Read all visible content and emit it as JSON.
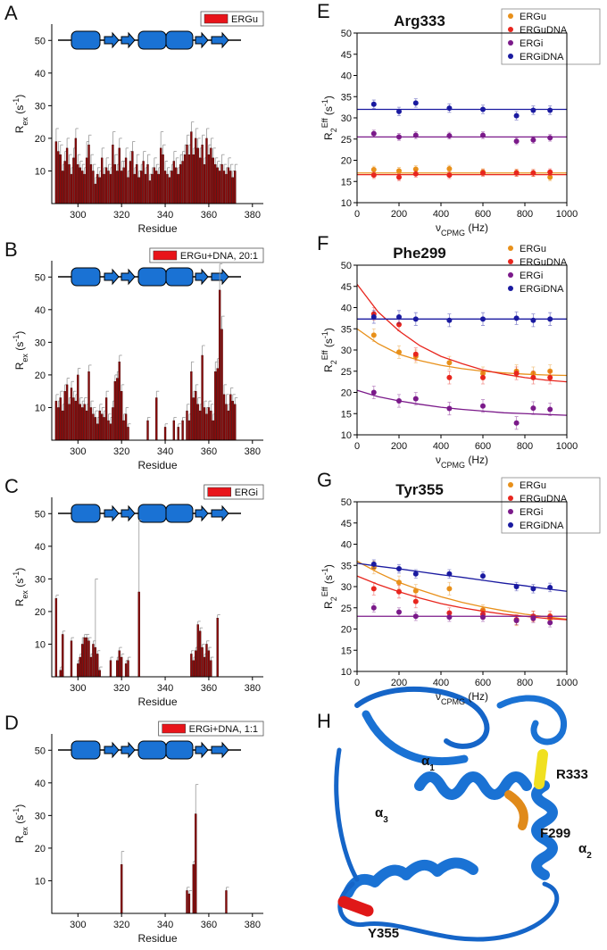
{
  "chart_data": [
    {
      "type": "bar",
      "panel": "A",
      "legend": "ERGu",
      "color": "#8b0a0a",
      "legend_color": "#e8141a",
      "ylabel": [
        "R",
        "ex",
        " (s",
        "-1",
        ")"
      ],
      "xlabel": "Residue",
      "xlim": [
        288,
        385
      ],
      "ylim": [
        0,
        55
      ],
      "xticks": [
        300,
        320,
        340,
        360,
        380
      ],
      "yticks": [
        10,
        20,
        30,
        40,
        50
      ],
      "x": [
        290,
        291,
        292,
        293,
        294,
        295,
        296,
        297,
        298,
        299,
        300,
        301,
        302,
        303,
        304,
        305,
        306,
        307,
        308,
        309,
        310,
        311,
        312,
        313,
        314,
        315,
        316,
        317,
        318,
        319,
        320,
        321,
        322,
        323,
        324,
        325,
        326,
        327,
        328,
        329,
        330,
        331,
        332,
        333,
        334,
        335,
        336,
        337,
        338,
        339,
        340,
        341,
        342,
        343,
        344,
        345,
        346,
        347,
        348,
        349,
        350,
        351,
        352,
        353,
        354,
        355,
        356,
        357,
        358,
        359,
        360,
        361,
        362,
        363,
        364,
        365,
        366,
        367,
        368,
        369,
        370,
        371,
        372
      ],
      "values": [
        19,
        16,
        15,
        10,
        13,
        17,
        12,
        9,
        14,
        20,
        12,
        11,
        10,
        9,
        14,
        18,
        12,
        10,
        6,
        9,
        8,
        14,
        9,
        11,
        10,
        9,
        18,
        12,
        10,
        17,
        10,
        11,
        14,
        8,
        13,
        16,
        9,
        12,
        8,
        10,
        13,
        9,
        12,
        7,
        9,
        11,
        10,
        9,
        17,
        15,
        10,
        9,
        8,
        10,
        13,
        11,
        9,
        12,
        13,
        15,
        18,
        15,
        22,
        15,
        20,
        17,
        14,
        18,
        12,
        20,
        15,
        17,
        14,
        12,
        11,
        10,
        12,
        10,
        9,
        11,
        10,
        8,
        10
      ],
      "errors": [
        4,
        3,
        3,
        2,
        3,
        3,
        3,
        2,
        3,
        3,
        3,
        2,
        2,
        2,
        5,
        3,
        3,
        2,
        2,
        2,
        2,
        3,
        2,
        3,
        2,
        2,
        4,
        3,
        2,
        3,
        3,
        2,
        3,
        2,
        3,
        3,
        2,
        3,
        2,
        2,
        3,
        2,
        3,
        2,
        2,
        3,
        2,
        2,
        5,
        3,
        3,
        2,
        2,
        2,
        3,
        3,
        2,
        3,
        3,
        3,
        3,
        3,
        3,
        2,
        3,
        3,
        3,
        3,
        2,
        3,
        3,
        3,
        3,
        2,
        2,
        2,
        3,
        2,
        2,
        3,
        2,
        2,
        2
      ]
    },
    {
      "type": "bar",
      "panel": "B",
      "legend": "ERGu+DNA, 20:1",
      "color": "#8b0a0a",
      "legend_color": "#e8141a",
      "ylabel": [
        "R",
        "ex",
        " (s",
        "-1",
        ")"
      ],
      "xlabel": "Residue",
      "xlim": [
        288,
        385
      ],
      "ylim": [
        0,
        55
      ],
      "xticks": [
        300,
        320,
        340,
        360,
        380
      ],
      "yticks": [
        10,
        20,
        30,
        40,
        50
      ],
      "x": [
        290,
        291,
        292,
        293,
        294,
        295,
        296,
        297,
        298,
        299,
        300,
        301,
        302,
        303,
        304,
        305,
        306,
        307,
        308,
        309,
        310,
        311,
        312,
        313,
        314,
        315,
        316,
        317,
        318,
        319,
        320,
        321,
        322,
        323,
        332,
        336,
        340,
        344,
        346,
        348,
        350,
        351,
        352,
        353,
        354,
        355,
        356,
        357,
        358,
        359,
        360,
        361,
        362,
        363,
        364,
        365,
        366,
        367,
        368,
        369,
        370,
        371,
        372
      ],
      "values": [
        12,
        10,
        13,
        9,
        15,
        17,
        11,
        16,
        13,
        12,
        20,
        11,
        10,
        11,
        9,
        21,
        10,
        8,
        7,
        5,
        9,
        8,
        7,
        13,
        6,
        5,
        10,
        18,
        19,
        24,
        15,
        6,
        8,
        4,
        6,
        13,
        4,
        6,
        4,
        6,
        9,
        6,
        21,
        13,
        15,
        11,
        9,
        26,
        10,
        8,
        10,
        9,
        6,
        21,
        22,
        46,
        34,
        14,
        11,
        9,
        14,
        12,
        11
      ],
      "errors": [
        2,
        2,
        2,
        2,
        2,
        2,
        2,
        2,
        2,
        2,
        2,
        2,
        2,
        2,
        2,
        2,
        2,
        2,
        2,
        2,
        2,
        2,
        2,
        2,
        2,
        2,
        2,
        2,
        2,
        2,
        2,
        2,
        2,
        1,
        1,
        2,
        1,
        1,
        1,
        1,
        2,
        2,
        3,
        2,
        2,
        2,
        2,
        3,
        2,
        2,
        2,
        2,
        2,
        3,
        3,
        8,
        4,
        3,
        3,
        2,
        2,
        2,
        2
      ]
    },
    {
      "type": "bar",
      "panel": "C",
      "legend": "ERGi",
      "color": "#8b0a0a",
      "legend_color": "#e8141a",
      "ylabel": [
        "R",
        "ex",
        " (s",
        "-1",
        ")"
      ],
      "xlabel": "Residue",
      "xlim": [
        288,
        385
      ],
      "ylim": [
        0,
        55
      ],
      "xticks": [
        300,
        320,
        340,
        360,
        380
      ],
      "yticks": [
        10,
        20,
        30,
        40,
        50
      ],
      "x": [
        290,
        292,
        293,
        297,
        300,
        301,
        302,
        303,
        304,
        305,
        306,
        307,
        308,
        309,
        310,
        315,
        318,
        319,
        320,
        322,
        323,
        328,
        352,
        353,
        354,
        355,
        356,
        357,
        358,
        359,
        360,
        361,
        364
      ],
      "values": [
        24,
        2,
        13,
        11,
        4,
        6,
        10,
        12,
        12,
        11,
        6,
        10,
        9,
        7,
        2,
        5,
        5,
        8,
        6,
        4,
        5,
        26,
        7,
        5,
        8,
        16,
        14,
        9,
        6,
        10,
        8,
        5,
        18
      ],
      "errors": [
        1,
        1,
        1,
        1,
        1,
        1,
        2,
        1,
        1,
        1,
        1,
        1,
        21,
        1,
        1,
        1,
        1,
        1,
        1,
        1,
        1,
        22,
        1,
        1,
        1,
        1,
        1,
        1,
        1,
        1,
        1,
        1,
        1
      ]
    },
    {
      "type": "bar",
      "panel": "D",
      "legend": "ERGi+DNA, 1:1",
      "color": "#8b0a0a",
      "legend_color": "#e8141a",
      "ylabel": [
        "R",
        "ex",
        " (s",
        "-1",
        ")"
      ],
      "xlabel": "Residue",
      "xlim": [
        288,
        385
      ],
      "ylim": [
        0,
        55
      ],
      "xticks": [
        300,
        320,
        340,
        360,
        380
      ],
      "yticks": [
        10,
        20,
        30,
        40,
        50
      ],
      "x": [
        320,
        350,
        351,
        353,
        354,
        368
      ],
      "values": [
        15,
        7,
        6,
        15,
        30.5,
        7
      ],
      "errors": [
        4,
        1,
        1,
        1,
        9,
        1
      ]
    },
    {
      "type": "scatter",
      "panel": "E",
      "title": "Arg333",
      "legend_box": true,
      "ylabel": [
        "R",
        "2",
        "Eff",
        " (s",
        "-1",
        ")"
      ],
      "xlabel": [
        "ν",
        "CPMG",
        " (Hz)"
      ],
      "xlim": [
        0,
        1000
      ],
      "ylim": [
        10,
        50
      ],
      "xticks": [
        0,
        200,
        400,
        600,
        800,
        1000
      ],
      "yticks": [
        10,
        15,
        20,
        25,
        30,
        35,
        40,
        45,
        50
      ],
      "x": [
        80,
        200,
        280,
        440,
        600,
        760,
        840,
        920
      ],
      "fit_x": [
        0,
        100,
        200,
        300,
        400,
        500,
        600,
        700,
        800,
        900,
        1000
      ],
      "series": [
        {
          "name": "ERGu",
          "color": "#e8901a",
          "values": [
            17.8,
            17.5,
            17.9,
            18,
            17.2,
            17.1,
            17,
            16
          ],
          "errors": [
            0.8,
            0.8,
            0.8,
            0.8,
            0.8,
            0.8,
            0.8,
            0.8
          ],
          "fit": [
            17,
            17,
            17,
            17,
            17,
            17,
            17,
            17,
            17,
            17,
            17
          ]
        },
        {
          "name": "ERGuDNA",
          "color": "#e8261e",
          "values": [
            16.5,
            16,
            16.8,
            16.5,
            17,
            17,
            17,
            17.2
          ],
          "errors": [
            0.8,
            0.8,
            0.8,
            0.8,
            0.8,
            0.8,
            0.8,
            0.8
          ],
          "fit": [
            16.6,
            16.6,
            16.6,
            16.6,
            16.6,
            16.6,
            16.6,
            16.6,
            16.6,
            16.6,
            16.6
          ]
        },
        {
          "name": "ERGi",
          "color": "#7b1a8a",
          "values": [
            26.3,
            25.5,
            25.9,
            25.8,
            25.9,
            24.5,
            24.8,
            25.3
          ],
          "errors": [
            0.8,
            0.8,
            0.8,
            0.8,
            0.8,
            0.8,
            0.8,
            0.8
          ],
          "fit": [
            25.5,
            25.5,
            25.5,
            25.5,
            25.5,
            25.5,
            25.5,
            25.5,
            25.5,
            25.5,
            25.5
          ]
        },
        {
          "name": "ERGiDNA",
          "color": "#1a1aa0",
          "values": [
            33.2,
            31.5,
            33.5,
            32.3,
            32,
            30.5,
            31.8,
            31.8
          ],
          "errors": [
            1,
            1,
            1,
            1,
            1,
            1,
            1,
            1
          ],
          "fit": [
            32,
            32,
            32,
            32,
            32,
            32,
            32,
            32,
            32,
            32,
            32
          ]
        }
      ]
    },
    {
      "type": "scatter",
      "panel": "F",
      "title": "Phe299",
      "legend_box": false,
      "ylabel": [
        "R",
        "2",
        "Eff",
        " (s",
        "-1",
        ")"
      ],
      "xlabel": [
        "ν",
        "CPMG",
        " (Hz)"
      ],
      "xlim": [
        0,
        1000
      ],
      "ylim": [
        10,
        50
      ],
      "xticks": [
        0,
        200,
        400,
        600,
        800,
        1000
      ],
      "yticks": [
        10,
        15,
        20,
        25,
        30,
        35,
        40,
        45,
        50
      ],
      "x": [
        80,
        200,
        280,
        440,
        600,
        760,
        840,
        920
      ],
      "fit_x": [
        0,
        100,
        200,
        300,
        400,
        500,
        600,
        700,
        800,
        900,
        1000
      ],
      "series": [
        {
          "name": "ERGu",
          "color": "#e8901a",
          "values": [
            33.5,
            29.5,
            28.5,
            27,
            24.5,
            25,
            24.5,
            25
          ],
          "errors": [
            1.5,
            1.5,
            1.5,
            1.5,
            1.5,
            1.5,
            1.5,
            1.5
          ],
          "fit": [
            35,
            31.5,
            29,
            27.5,
            26.4,
            25.6,
            25,
            24.6,
            24.3,
            24.1,
            24
          ]
        },
        {
          "name": "ERGuDNA",
          "color": "#e8261e",
          "values": [
            38.5,
            36,
            29,
            23.5,
            23.5,
            24.5,
            23.5,
            23.5
          ],
          "errors": [
            1.5,
            1.5,
            1.5,
            1.5,
            1.5,
            1.5,
            1.5,
            1.5
          ],
          "fit": [
            45.5,
            39,
            34.5,
            31,
            28.5,
            26.8,
            25.3,
            24.3,
            23.5,
            22.9,
            22.5
          ]
        },
        {
          "name": "ERGi",
          "color": "#7b1a8a",
          "values": [
            20,
            18,
            18.5,
            16.2,
            16.8,
            12.8,
            16.3,
            16
          ],
          "errors": [
            1.5,
            1.5,
            1.5,
            1.5,
            1.5,
            1.5,
            1.5,
            1.5
          ],
          "fit": [
            20.5,
            19,
            18,
            17.2,
            16.5,
            16,
            15.6,
            15.2,
            15,
            14.8,
            14.6
          ]
        },
        {
          "name": "ERGiDNA",
          "color": "#1a1aa0",
          "values": [
            37.8,
            37.8,
            37.3,
            37,
            37.3,
            37.5,
            37,
            37.3
          ],
          "errors": [
            1.5,
            1.5,
            1.5,
            1.5,
            1.5,
            1.5,
            1.5,
            1.5
          ],
          "fit": [
            37.3,
            37.3,
            37.3,
            37.3,
            37.3,
            37.3,
            37.3,
            37.3,
            37.3,
            37.3,
            37.3
          ]
        }
      ]
    },
    {
      "type": "scatter",
      "panel": "G",
      "title": "Tyr355",
      "legend_box": true,
      "ylabel": [
        "R",
        "2",
        "Eff",
        " (s",
        "-1",
        ")"
      ],
      "xlabel": [
        "ν",
        "CPMG",
        " (Hz)"
      ],
      "xlim": [
        0,
        1000
      ],
      "ylim": [
        10,
        50
      ],
      "xticks": [
        0,
        200,
        400,
        600,
        800,
        1000
      ],
      "yticks": [
        10,
        15,
        20,
        25,
        30,
        35,
        40,
        45,
        50
      ],
      "x": [
        80,
        200,
        280,
        440,
        600,
        760,
        840,
        920
      ],
      "fit_x": [
        0,
        100,
        200,
        300,
        400,
        500,
        600,
        700,
        800,
        900,
        1000
      ],
      "series": [
        {
          "name": "ERGu",
          "color": "#e8901a",
          "values": [
            34.5,
            31,
            29,
            29.5,
            24.5,
            22,
            23,
            22.5
          ],
          "errors": [
            1.5,
            1.5,
            1.5,
            1.5,
            1.2,
            1.2,
            1.2,
            1.2
          ],
          "fit": [
            36,
            33.3,
            31,
            29.2,
            27.6,
            26.3,
            25.2,
            24.3,
            23.5,
            22.9,
            22.3
          ]
        },
        {
          "name": "ERGuDNA",
          "color": "#e8261e",
          "values": [
            29.5,
            28.8,
            26.5,
            23.8,
            23.5,
            22.2,
            23,
            23
          ],
          "errors": [
            1.5,
            1.5,
            1.5,
            1.2,
            1.2,
            1.2,
            1.2,
            1.2
          ],
          "fit": [
            32.5,
            30.5,
            28.8,
            27.3,
            26,
            25,
            24.2,
            23.5,
            23,
            22.5,
            22.2
          ]
        },
        {
          "name": "ERGi",
          "color": "#7b1a8a",
          "values": [
            25,
            24,
            23,
            22.8,
            22.8,
            22,
            22.5,
            21.5
          ],
          "errors": [
            1,
            1,
            1,
            1,
            1,
            1,
            1,
            1
          ],
          "fit": [
            23,
            23,
            23,
            23,
            23,
            23,
            23,
            23,
            23,
            23,
            23
          ]
        },
        {
          "name": "ERGiDNA",
          "color": "#1a1aa0",
          "values": [
            35.3,
            34.2,
            33,
            33,
            32.5,
            30,
            29.5,
            29.8
          ],
          "errors": [
            1,
            1,
            1,
            1,
            1,
            1,
            1,
            1
          ],
          "fit": [
            35.5,
            34.8,
            34.2,
            33.5,
            32.8,
            32.2,
            31.5,
            30.8,
            30.2,
            29.5,
            28.9
          ]
        }
      ]
    }
  ],
  "structure": {
    "panel": "H",
    "alpha1": [
      "α",
      "1"
    ],
    "alpha2": [
      "α",
      "2"
    ],
    "alpha3": [
      "α",
      "3"
    ],
    "r333": "R333",
    "f299": "F299",
    "y355": "Y355"
  }
}
